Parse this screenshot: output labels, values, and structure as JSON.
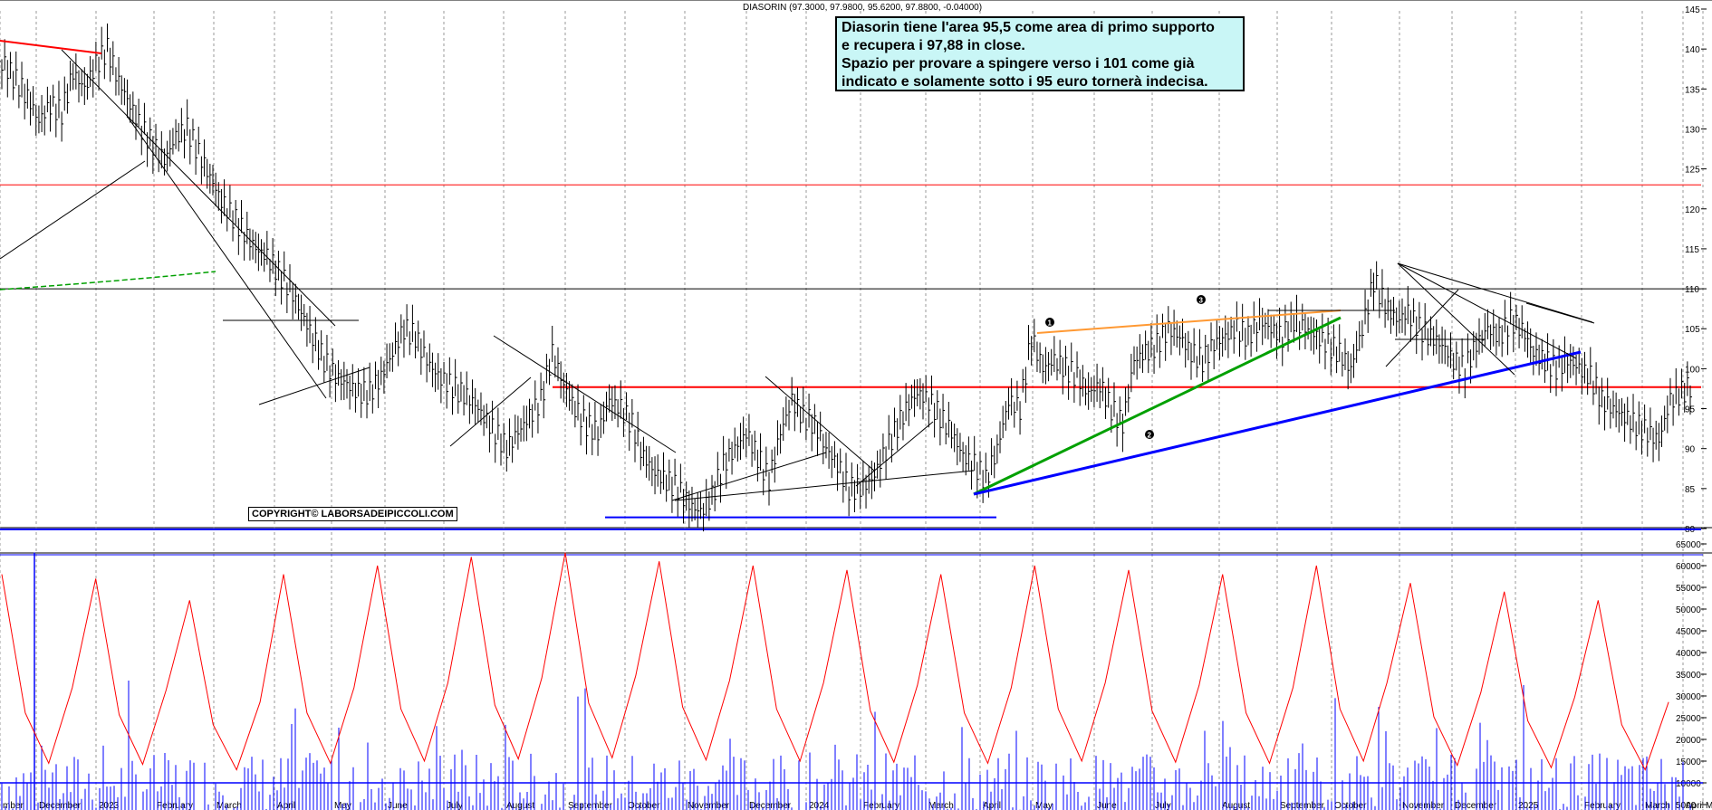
{
  "chart_title": "DIASORIN (97.3000, 97.9800, 95.6200, 97.8800, -0.04000)",
  "annotation": {
    "lines": [
      "Diasorin tiene l'area 95,5 come area di primo supporto",
      "e recupera i 97,88 in close.",
      "Spazio per provare a spingere verso i 101 come già",
      "indicato e solamente sotto i 95 euro tornerà indecisa."
    ]
  },
  "copyright": "COPYRIGHT© LABORSADEIPICCOLI.COM",
  "colors": {
    "price": "#000000",
    "volume_bars": "#0000ff",
    "volume_avg": "#ff0000",
    "resistance": "#ff0000",
    "support": "#0000ff",
    "uptrend_green": "#00a000",
    "uptrend_orange": "#ff9933",
    "grid": "#999999"
  },
  "chart_data": [
    {
      "type": "line",
      "name": "price",
      "x_labels": [
        "mber",
        "December",
        "2023",
        "February",
        "March",
        "April",
        "May",
        "June",
        "July",
        "August",
        "September",
        "October",
        "November",
        "December",
        "2024",
        "February",
        "March",
        "April",
        "May",
        "June",
        "July",
        "August",
        "September",
        "October",
        "November",
        "December",
        "2025",
        "February",
        "March",
        "April",
        "Ma"
      ],
      "y_ticks": [
        80,
        85,
        90,
        95,
        100,
        105,
        110,
        115,
        120,
        125,
        130,
        135,
        140,
        145
      ],
      "ylim": [
        77,
        146
      ],
      "close": [
        138,
        136,
        134,
        131,
        133,
        132,
        137,
        135,
        138,
        140,
        136,
        133,
        130,
        128,
        126,
        129,
        130,
        127,
        124,
        121,
        119,
        117,
        115,
        114,
        112,
        110,
        107,
        104,
        101,
        99,
        98,
        97,
        97,
        99,
        102,
        105,
        104,
        101,
        99,
        98,
        97,
        96,
        94,
        92,
        90,
        92,
        94,
        96,
        102,
        98,
        95,
        93,
        92,
        96,
        95,
        93,
        89,
        87,
        86,
        85,
        83,
        82,
        84,
        88,
        90,
        92,
        89,
        86,
        92,
        96,
        94,
        93,
        90,
        88,
        85,
        85,
        86,
        89,
        92,
        95,
        97,
        96,
        94,
        92,
        89,
        88,
        86,
        90,
        96,
        95,
        104,
        100,
        101,
        100,
        99,
        97,
        98,
        95,
        93,
        101,
        102,
        103,
        105,
        104,
        102,
        101,
        103,
        104,
        105,
        104,
        106,
        105,
        104,
        106,
        105,
        104,
        103,
        102,
        100,
        105,
        111,
        108,
        106,
        107,
        105,
        104,
        103,
        101,
        100,
        103,
        105,
        104,
        106,
        105,
        102,
        101,
        100,
        101,
        100,
        99,
        96,
        95,
        94,
        93,
        92,
        91,
        96,
        97,
        98
      ],
      "resistance_lines": [
        123,
        110,
        97.7
      ],
      "support_lines": [
        80,
        81.4
      ],
      "labels_on_chart": [
        "1",
        "2",
        "3"
      ]
    },
    {
      "type": "bar",
      "name": "volume",
      "y_ticks": [
        5000,
        10000,
        15000,
        20000,
        25000,
        30000,
        35000,
        40000,
        45000,
        50000,
        55000,
        60000,
        65000
      ],
      "ylim": [
        0,
        66000
      ],
      "reference_line": 10000,
      "max_line": 62500,
      "avg_peak_values": [
        58000,
        57000,
        52000,
        58000,
        60000,
        62000,
        63000,
        61000,
        60000,
        59000,
        58000,
        60000,
        59000,
        58000,
        60000,
        56000,
        54000,
        52000
      ]
    }
  ]
}
